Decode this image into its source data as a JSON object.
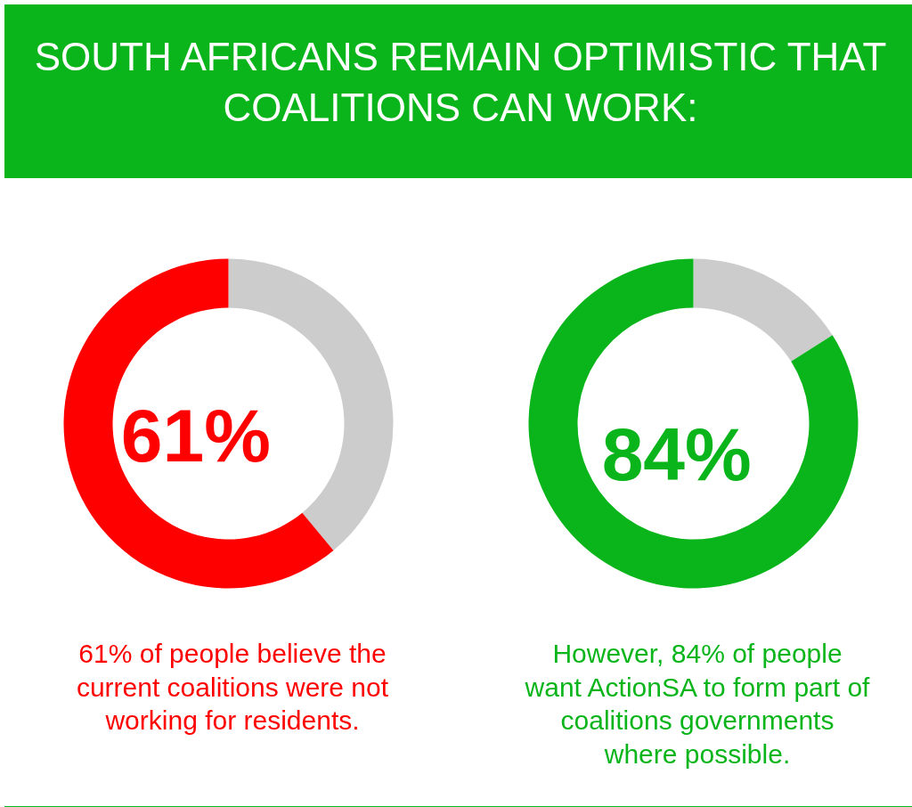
{
  "chart_data": [
    {
      "type": "donut",
      "title": "SOUTH AFRICANS REMAIN OPTIMISTIC THAT COALITIONS CAN WORK:",
      "categories": [
        null,
        null
      ],
      "values": [
        39,
        61
      ],
      "colors": [
        "#cccccc",
        "#ff0000"
      ],
      "value_labels": [
        null,
        "61%"
      ],
      "annotations": [
        "61% of people believe the current coalitions were not working for residents."
      ]
    },
    {
      "type": "donut",
      "categories": [
        null,
        null
      ],
      "values": [
        16,
        84
      ],
      "colors": [
        "#cccccc",
        "#09b51a"
      ],
      "value_labels": [
        null,
        "84%"
      ],
      "annotations": [
        "However, 84% of people want ActionSA to form part of coalitions governments where possible."
      ]
    }
  ]
}
